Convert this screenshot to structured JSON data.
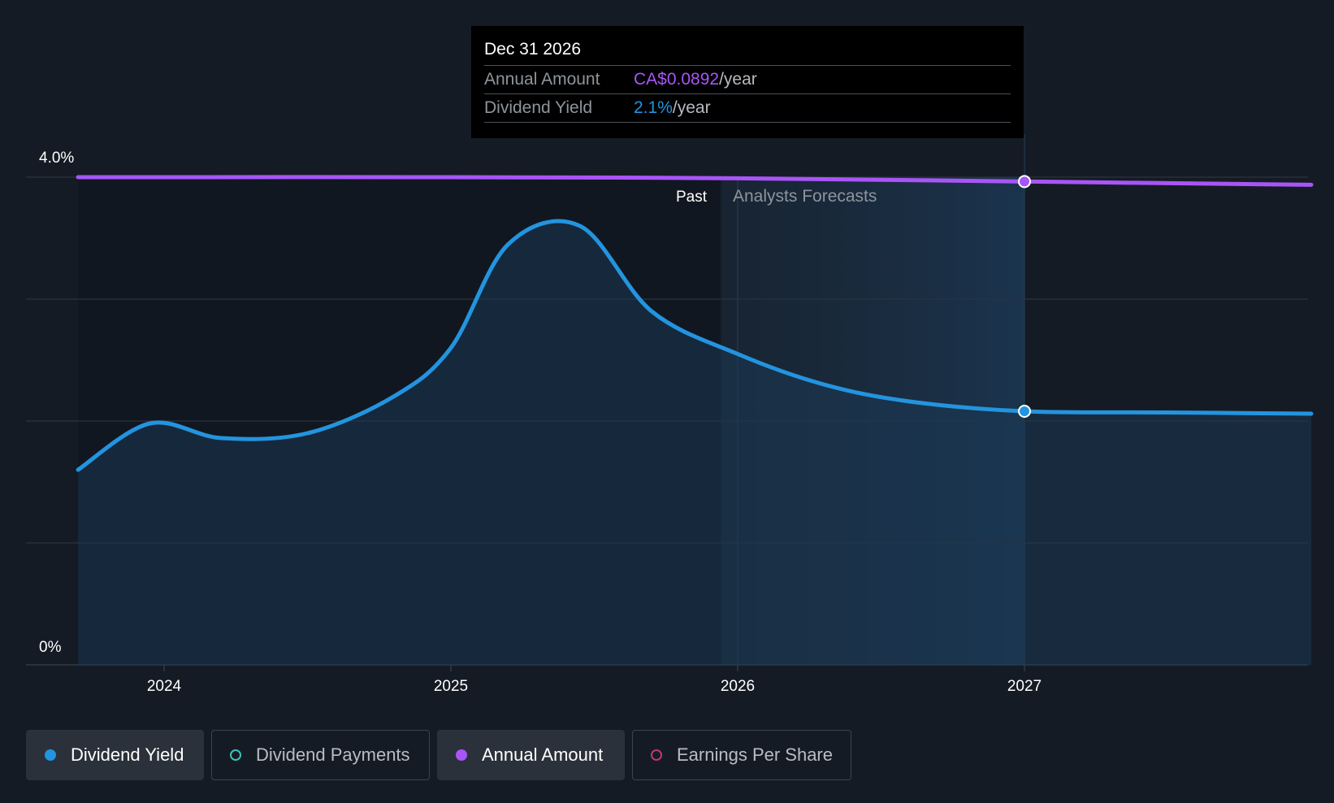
{
  "chart_data": {
    "type": "line",
    "y_axis": {
      "labels": [
        "4.0%",
        "0%"
      ],
      "ylim": [
        0,
        4.0
      ],
      "unit": "%"
    },
    "x_axis": {
      "tick_labels": [
        "2024",
        "2025",
        "2026",
        "2027"
      ],
      "xlim": [
        2023.5,
        2028.0
      ]
    },
    "regions": {
      "past_label": "Past",
      "forecast_label": "Analysts Forecasts",
      "forecast_start": 2026.0
    },
    "series": [
      {
        "name": "Dividend Yield",
        "color": "#2394df",
        "unit": "%",
        "points": [
          [
            2023.7,
            1.6
          ],
          [
            2023.95,
            1.98
          ],
          [
            2024.2,
            1.86
          ],
          [
            2024.5,
            1.9
          ],
          [
            2024.8,
            2.2
          ],
          [
            2025.0,
            2.6
          ],
          [
            2025.2,
            3.45
          ],
          [
            2025.45,
            3.6
          ],
          [
            2025.7,
            2.9
          ],
          [
            2026.0,
            2.55
          ],
          [
            2026.3,
            2.3
          ],
          [
            2026.6,
            2.16
          ],
          [
            2027.0,
            2.08
          ],
          [
            2027.5,
            2.07
          ],
          [
            2028.0,
            2.06
          ]
        ]
      },
      {
        "name": "Annual Amount",
        "color": "#a855f7",
        "unit": "CA$",
        "points": [
          [
            2023.7,
            0.09
          ],
          [
            2025.0,
            0.09
          ],
          [
            2026.0,
            0.0898
          ],
          [
            2027.0,
            0.0892
          ],
          [
            2028.0,
            0.0886
          ]
        ],
        "axis_max": 0.09
      }
    ],
    "highlight": {
      "x": 2027.0,
      "yield": 2.08,
      "amount": 0.0892
    }
  },
  "tooltip": {
    "date": "Dec 31 2026",
    "rows": [
      {
        "label": "Annual Amount",
        "value": "CA$0.0892",
        "unit": "/year"
      },
      {
        "label": "Dividend Yield",
        "value": "2.1%",
        "unit": "/year"
      }
    ]
  },
  "legend": {
    "items": [
      {
        "label": "Dividend Yield",
        "color": "#2394df",
        "filled": true,
        "active": true
      },
      {
        "label": "Dividend Payments",
        "color": "#3ec1b6",
        "filled": false,
        "active": false
      },
      {
        "label": "Annual Amount",
        "color": "#a855f7",
        "filled": true,
        "active": true
      },
      {
        "label": "Earnings Per Share",
        "color": "#c0386f",
        "filled": false,
        "active": false
      }
    ]
  },
  "colors": {
    "background": "#151b24",
    "grid": "#2c333d"
  }
}
